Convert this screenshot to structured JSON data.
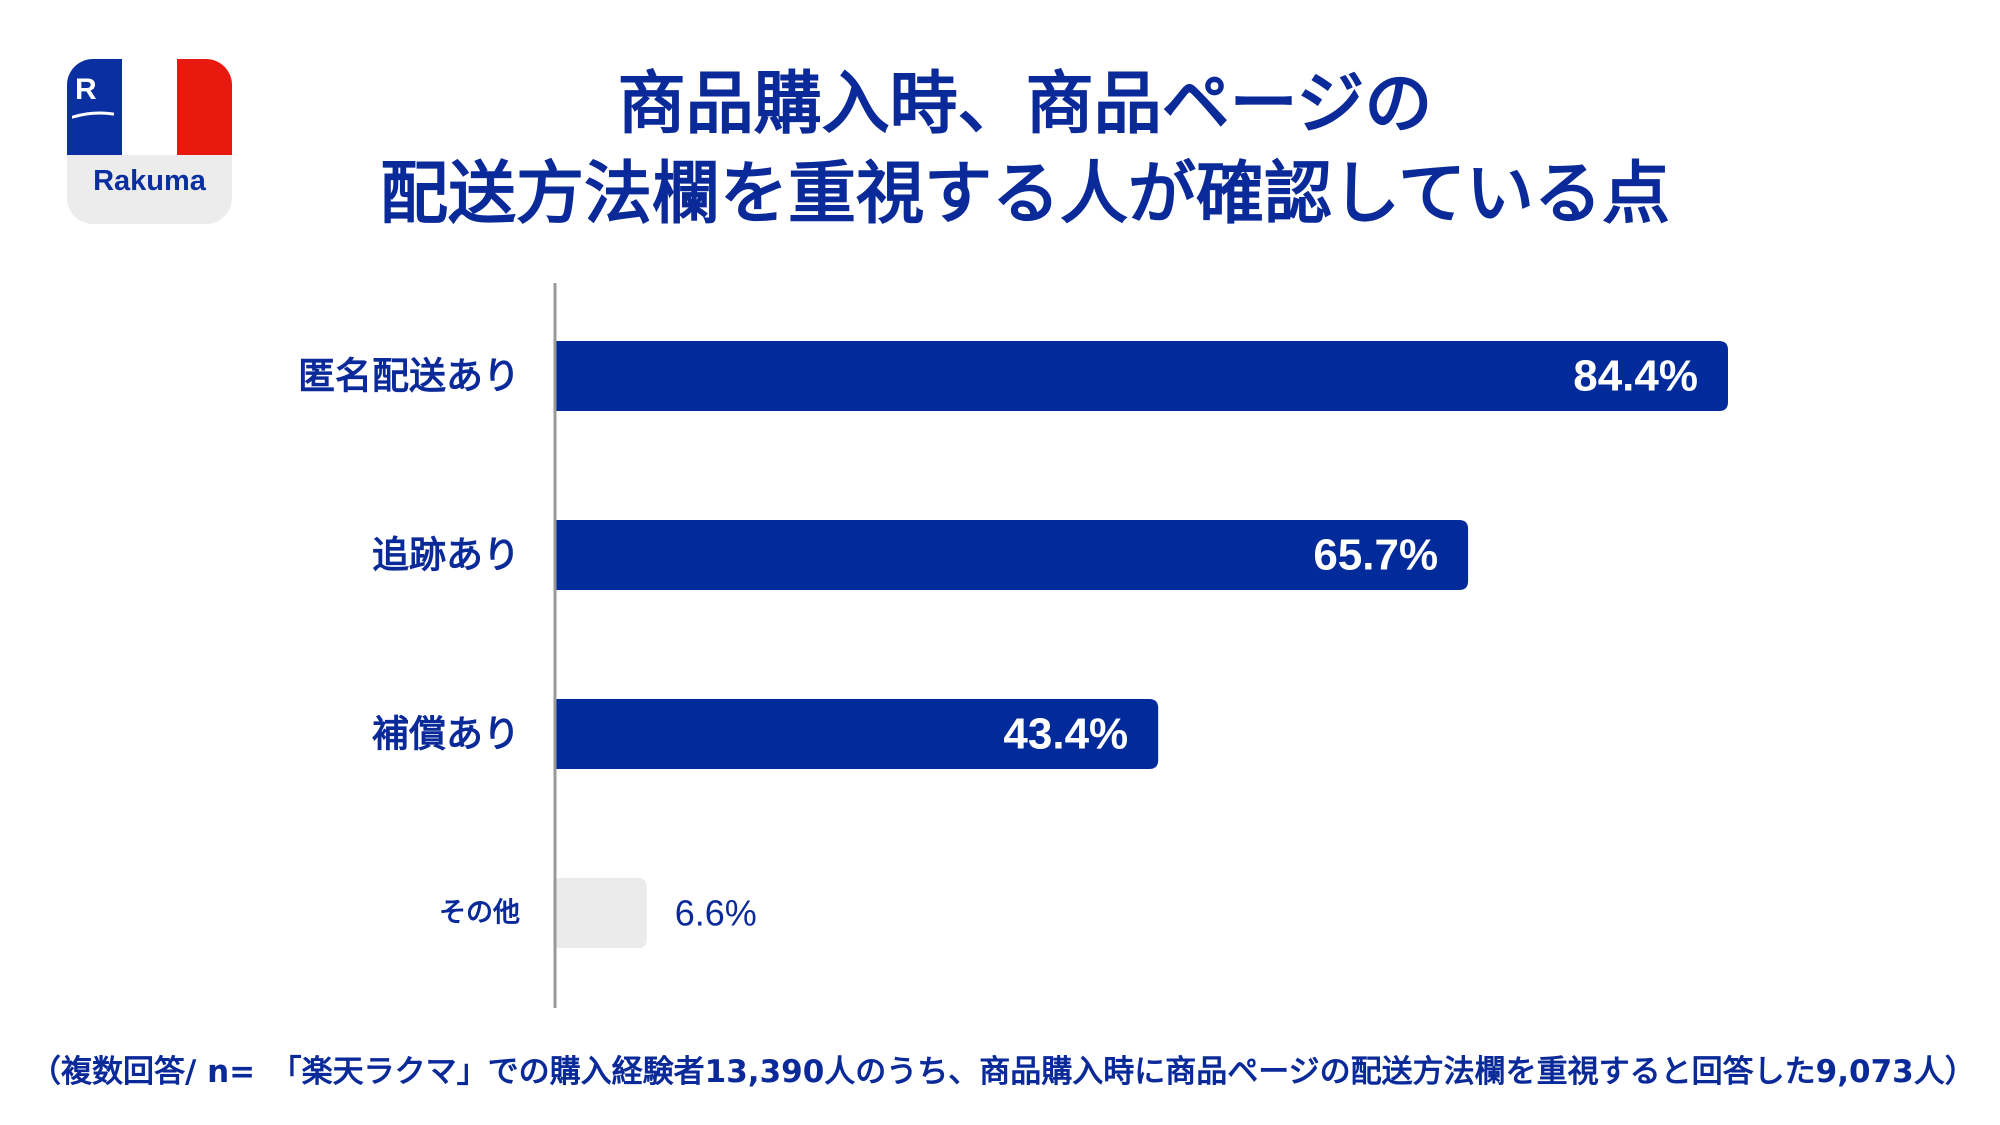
{
  "logo": {
    "mark": "R",
    "brand": "Rakuma",
    "colors": {
      "blue": "#0a2fa0",
      "white": "#ffffff",
      "red": "#e8190e"
    }
  },
  "title": {
    "line1": "商品購入時、商品ページの",
    "line2": "配送方法欄を重視する人が確認している点"
  },
  "chart_data": {
    "type": "bar",
    "orientation": "horizontal",
    "categories": [
      "匿名配送あり",
      "追跡あり",
      "補償あり",
      "その他"
    ],
    "values": [
      84.4,
      65.7,
      43.4,
      6.6
    ],
    "value_labels": [
      "84.4%",
      "65.7%",
      "43.4%",
      "6.6%"
    ],
    "xlim": [
      0,
      100
    ],
    "unit": "%",
    "grid": false,
    "legend": "none",
    "colors": {
      "main": "#012b9b",
      "other": "#ebebeb",
      "text": "#0b2a99",
      "axis": "#999999"
    }
  },
  "footnote": "（複数回答/ n=　「楽天ラクマ」での購入経験者13,390人のうち、商品購入時に商品ページの配送方法欄を重視すると回答した9,073人）"
}
